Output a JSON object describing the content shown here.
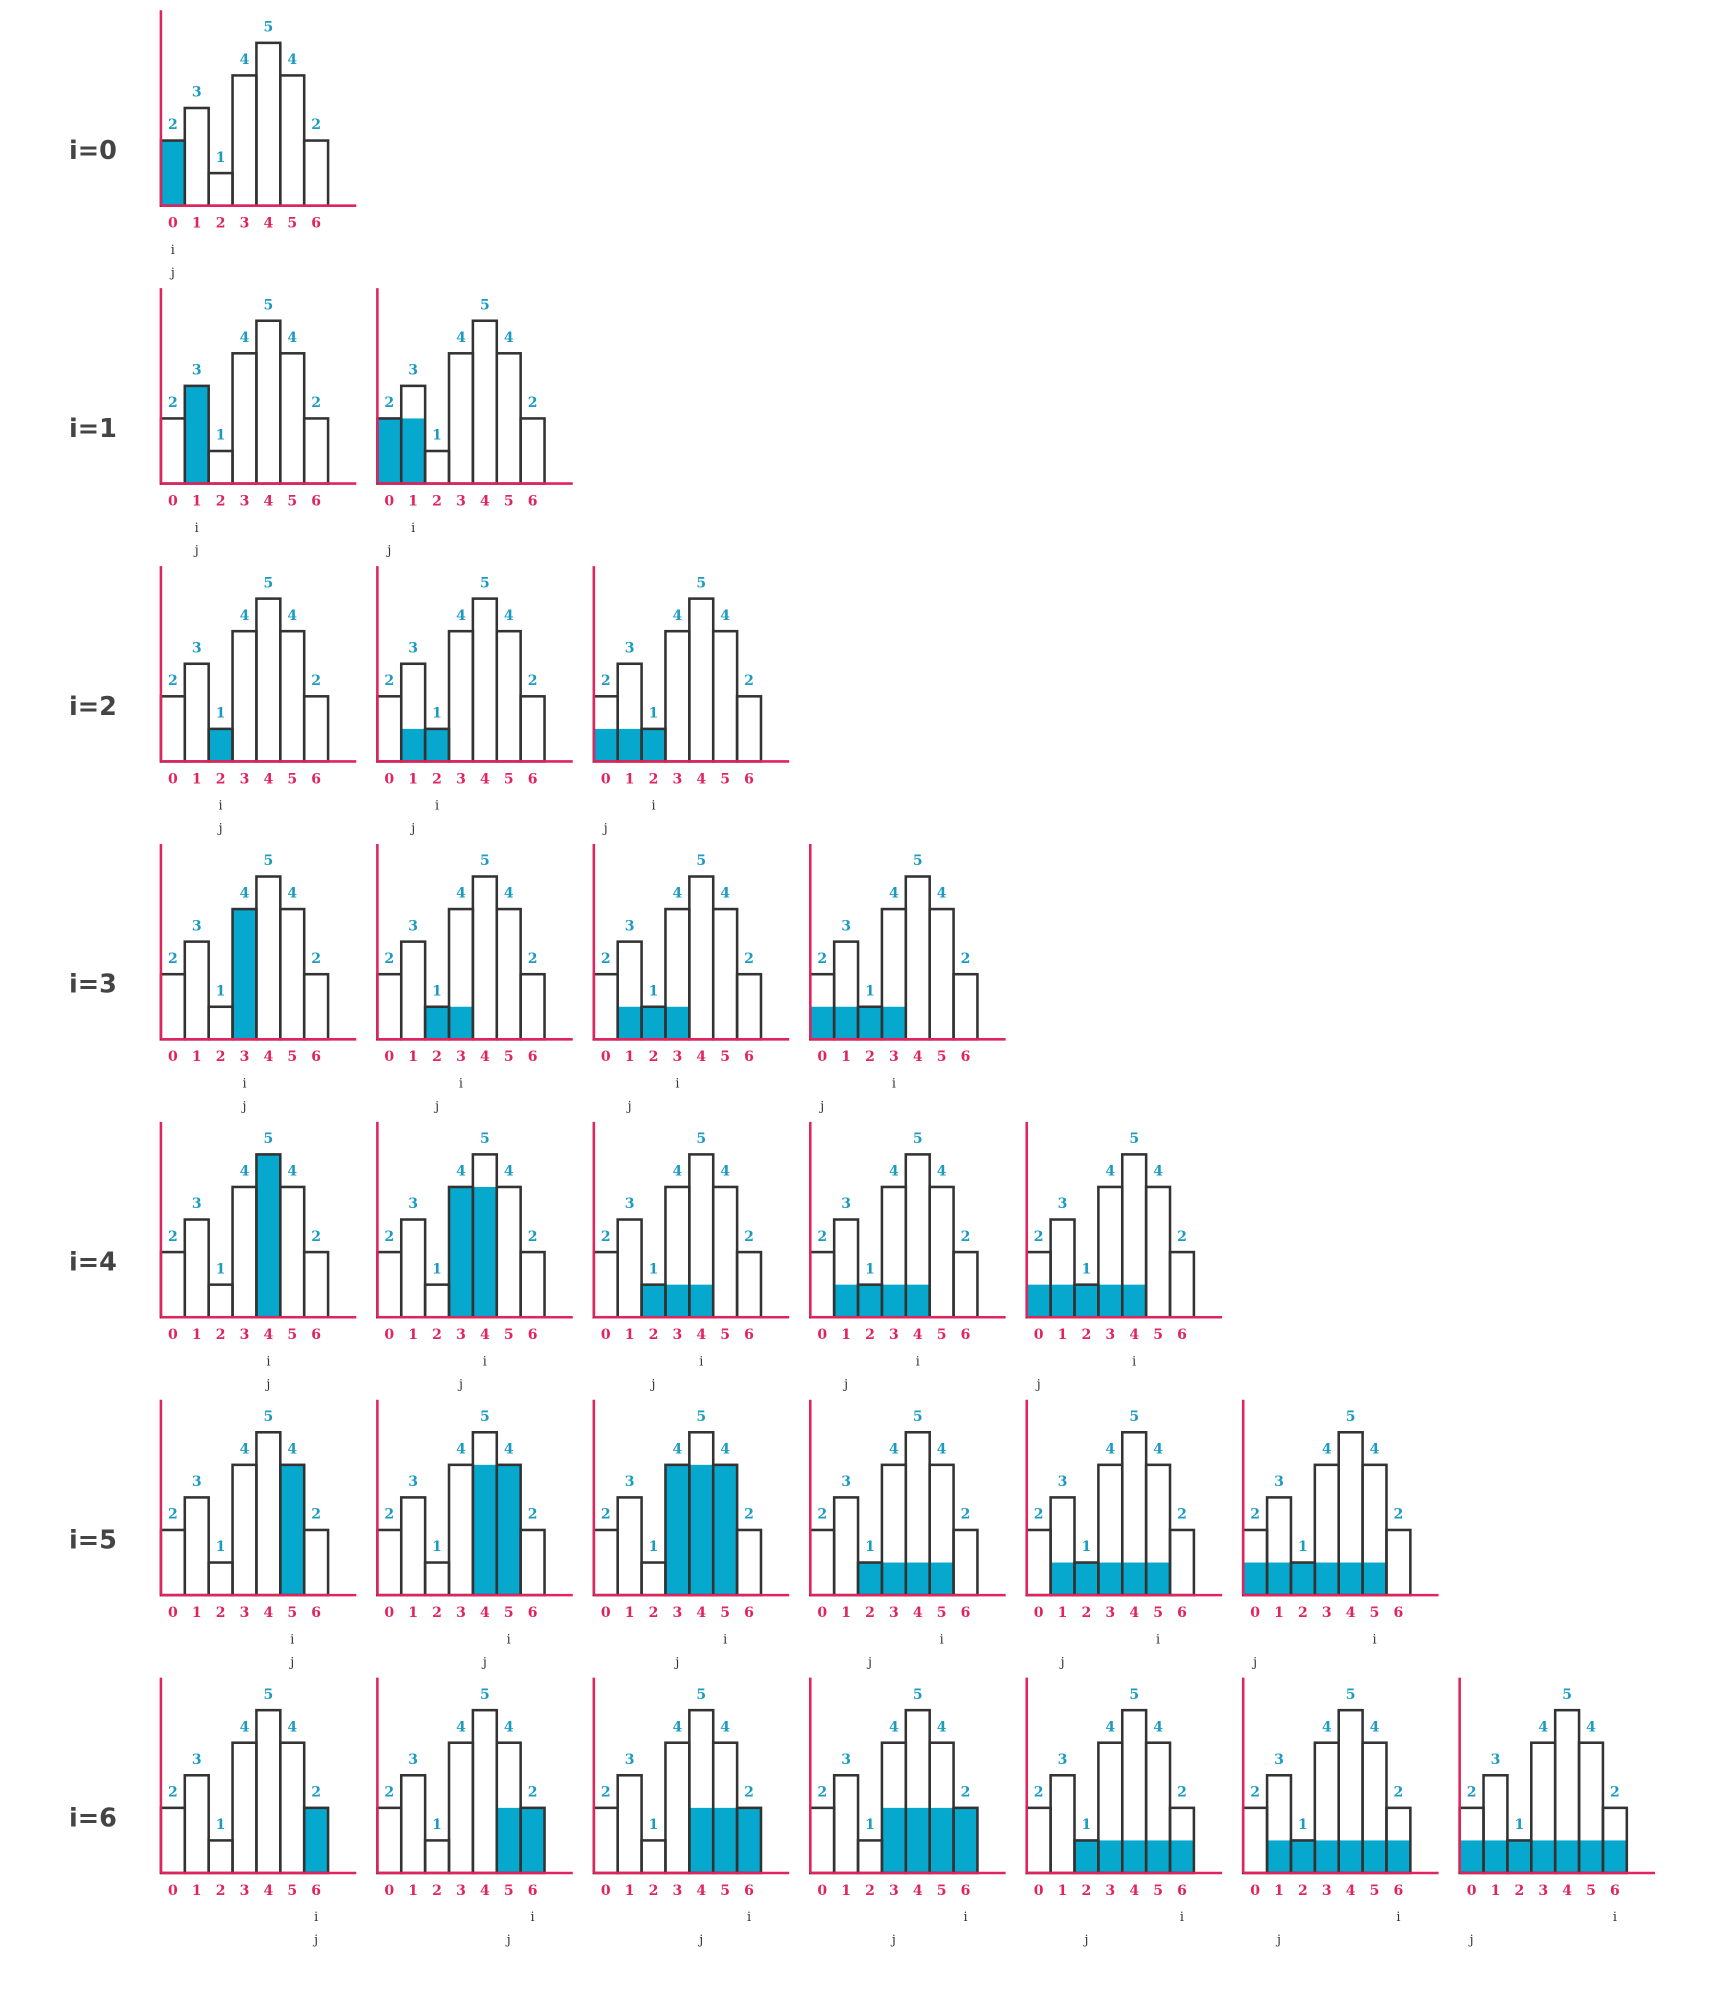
{
  "heights": [
    2,
    3,
    1,
    4,
    5,
    4,
    2
  ],
  "indices": [
    0,
    1,
    2,
    3,
    4,
    5,
    6
  ],
  "pointer_labels": {
    "i": "i",
    "j": "j"
  },
  "rows": [
    {
      "label": "i=0",
      "panels": [
        {
          "i": 0,
          "j": 0
        }
      ]
    },
    {
      "label": "i=1",
      "panels": [
        {
          "i": 1,
          "j": 1
        },
        {
          "i": 1,
          "j": 0
        }
      ]
    },
    {
      "label": "i=2",
      "panels": [
        {
          "i": 2,
          "j": 2
        },
        {
          "i": 2,
          "j": 1
        },
        {
          "i": 2,
          "j": 0
        }
      ]
    },
    {
      "label": "i=3",
      "panels": [
        {
          "i": 3,
          "j": 3
        },
        {
          "i": 3,
          "j": 2
        },
        {
          "i": 3,
          "j": 1
        },
        {
          "i": 3,
          "j": 0
        }
      ]
    },
    {
      "label": "i=4",
      "panels": [
        {
          "i": 4,
          "j": 4
        },
        {
          "i": 4,
          "j": 3
        },
        {
          "i": 4,
          "j": 2
        },
        {
          "i": 4,
          "j": 1
        },
        {
          "i": 4,
          "j": 0
        }
      ]
    },
    {
      "label": "i=5",
      "panels": [
        {
          "i": 5,
          "j": 5
        },
        {
          "i": 5,
          "j": 4
        },
        {
          "i": 5,
          "j": 3
        },
        {
          "i": 5,
          "j": 2
        },
        {
          "i": 5,
          "j": 1
        },
        {
          "i": 5,
          "j": 0
        }
      ]
    },
    {
      "label": "i=6",
      "panels": [
        {
          "i": 6,
          "j": 6
        },
        {
          "i": 6,
          "j": 5
        },
        {
          "i": 6,
          "j": 4
        },
        {
          "i": 6,
          "j": 3
        },
        {
          "i": 6,
          "j": 2
        },
        {
          "i": 6,
          "j": 1
        },
        {
          "i": 6,
          "j": 0
        }
      ]
    }
  ]
}
